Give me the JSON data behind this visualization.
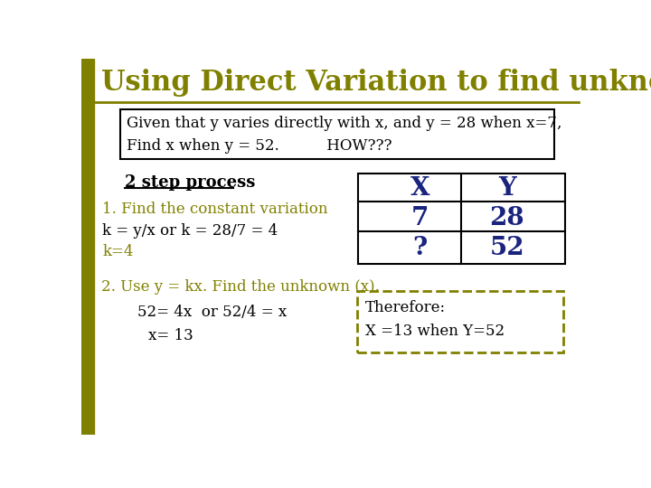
{
  "title": "Using Direct Variation to find unknowns (y = kx)",
  "title_color": "#808000",
  "title_fontsize": 22,
  "bg_color": "#FFFFFF",
  "left_bar_color": "#808000",
  "problem_box_text1": "Given that y varies directly with x, and y = 28 when x=7,",
  "problem_box_text2": "Find x when y = 52.          HOW???",
  "step_label": "2 step process",
  "step1_text": "1. Find the constant variation",
  "step2a_text": "k = y/x or k = 28/7 = 4",
  "step2b_text": "k=4",
  "step3_text": "2. Use y = kx. Find the unknown (x).",
  "step4a_text": "52= 4x  or 52/4 = x",
  "step4b_text": "x= 13",
  "table_header_x": "X",
  "table_header_y": "Y",
  "table_r1c1": "7",
  "table_r1c2": "28",
  "table_r2c1": "?",
  "table_r2c2": "52",
  "therefore_line1": "Therefore:",
  "therefore_line2": "X =13 when Y=52",
  "navy": "#1a237e",
  "olive": "#808000",
  "black": "#000000"
}
